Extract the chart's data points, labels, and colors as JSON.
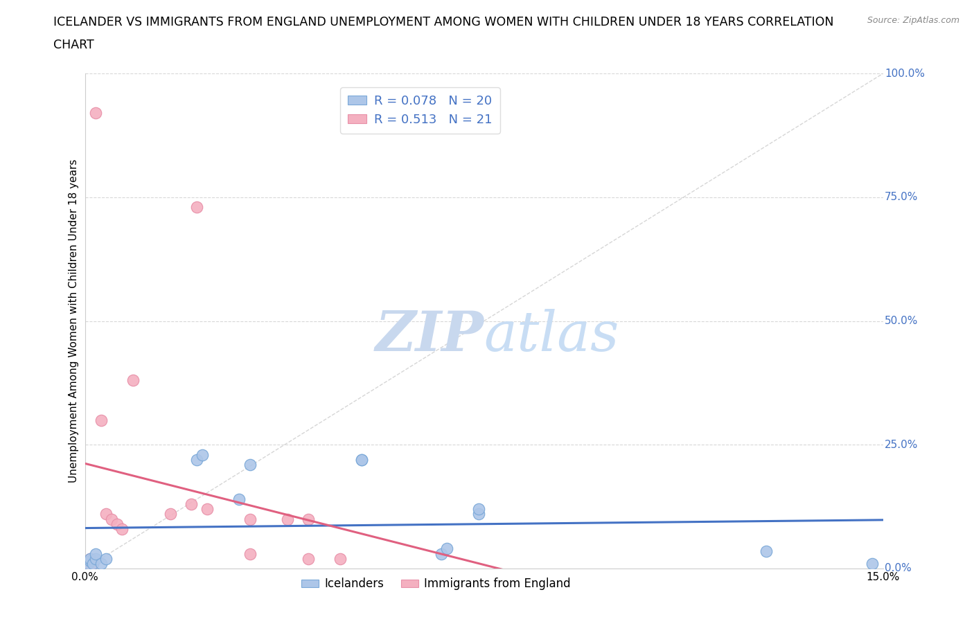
{
  "title_line1": "ICELANDER VS IMMIGRANTS FROM ENGLAND UNEMPLOYMENT AMONG WOMEN WITH CHILDREN UNDER 18 YEARS CORRELATION",
  "title_line2": "CHART",
  "source": "Source: ZipAtlas.com",
  "ylabel": "Unemployment Among Women with Children Under 18 years",
  "xlabel": "",
  "xlim": [
    0.0,
    0.15
  ],
  "ylim": [
    0.0,
    1.0
  ],
  "xticks": [
    0.0,
    0.03,
    0.06,
    0.09,
    0.12,
    0.15
  ],
  "yticks": [
    0.0,
    0.25,
    0.5,
    0.75,
    1.0
  ],
  "ytick_labels": [
    "0.0%",
    "25.0%",
    "50.0%",
    "75.0%",
    "100.0%"
  ],
  "xtick_labels": [
    "0.0%",
    "",
    "",
    "",
    "",
    "15.0%"
  ],
  "legend_entries": [
    {
      "label": "Icelanders",
      "color": "#a8c4e0",
      "R": 0.078,
      "N": 20
    },
    {
      "label": "Immigrants from England",
      "color": "#f4a0b0",
      "R": 0.513,
      "N": 21
    }
  ],
  "icelanders_x": [
    0.0005,
    0.001,
    0.001,
    0.0015,
    0.002,
    0.002,
    0.003,
    0.004,
    0.021,
    0.022,
    0.029,
    0.031,
    0.052,
    0.052,
    0.067,
    0.068,
    0.074,
    0.074,
    0.128,
    0.148
  ],
  "icelanders_y": [
    0.01,
    0.015,
    0.02,
    0.01,
    0.02,
    0.03,
    0.01,
    0.02,
    0.22,
    0.23,
    0.14,
    0.21,
    0.22,
    0.22,
    0.03,
    0.04,
    0.11,
    0.12,
    0.035,
    0.01
  ],
  "england_x": [
    0.0005,
    0.001,
    0.001,
    0.0015,
    0.002,
    0.003,
    0.004,
    0.005,
    0.006,
    0.007,
    0.009,
    0.016,
    0.02,
    0.021,
    0.023,
    0.031,
    0.031,
    0.038,
    0.042,
    0.042,
    0.048
  ],
  "england_y": [
    0.01,
    0.015,
    0.02,
    0.01,
    0.92,
    0.3,
    0.11,
    0.1,
    0.09,
    0.08,
    0.38,
    0.11,
    0.13,
    0.73,
    0.12,
    0.1,
    0.03,
    0.1,
    0.1,
    0.02,
    0.02
  ],
  "blue_line_color": "#4472c4",
  "pink_line_color": "#e06080",
  "scatter_blue": "#adc6e8",
  "scatter_pink": "#f4b0c0",
  "scatter_blue_edge": "#7aa8d8",
  "scatter_pink_edge": "#e890a8",
  "diagonal_color": "#cccccc",
  "grid_color": "#d8d8d8",
  "title_color": "#000000",
  "right_label_color": "#4472c4",
  "watermark_color": "#c8d8ee",
  "R_ice": 0.078,
  "N_ice": 20,
  "R_eng": 0.513,
  "N_eng": 21,
  "label_ice": "Icelanders",
  "label_eng": "Immigrants from England"
}
